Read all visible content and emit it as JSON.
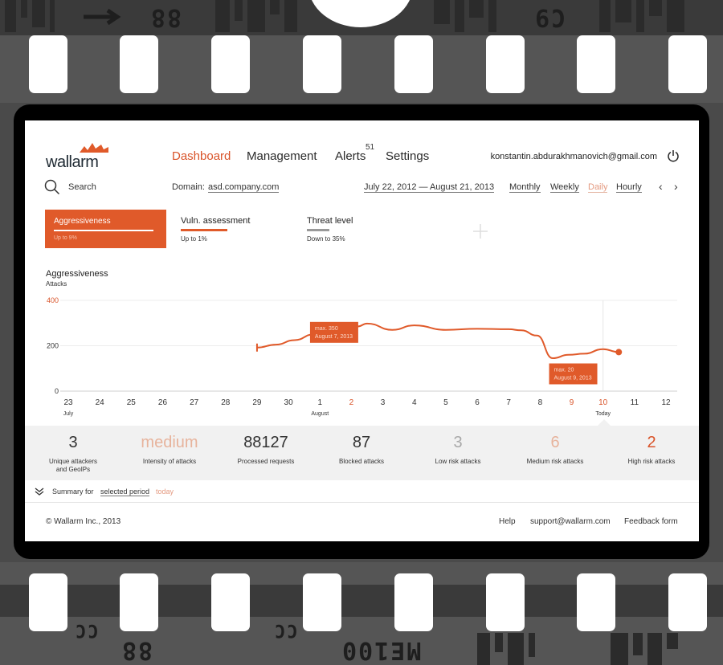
{
  "film": {
    "marks_top": [
      "88",
      "C9"
    ],
    "marks_bottom": [
      "CC",
      "88",
      "CC",
      "ME100"
    ]
  },
  "header": {
    "logo_text": "wallarm",
    "nav": [
      {
        "label": "Dashboard",
        "active": true
      },
      {
        "label": "Management",
        "active": false
      },
      {
        "label": "Alerts",
        "active": false
      },
      {
        "label": "Settings",
        "active": false
      }
    ],
    "alerts_badge": "51",
    "user_email": "konstantin.abdurakhmanovich@gmail.com"
  },
  "toolbar": {
    "search_label": "Search",
    "domain_label": "Domain:",
    "domain_value": "asd.company.com",
    "date_range": "July 22, 2012 — August 21, 2013",
    "periods": [
      {
        "label": "Monthly",
        "active": false
      },
      {
        "label": "Weekly",
        "active": false
      },
      {
        "label": "Daily",
        "active": true
      },
      {
        "label": "Hourly",
        "active": false
      }
    ],
    "prev_label": "‹",
    "next_label": "›"
  },
  "metric_tabs": [
    {
      "title": "Aggressiveness",
      "subtitle": "Up to 9%",
      "active": true
    },
    {
      "title": "Vuln. assessment",
      "subtitle": "Up to 1%",
      "active": false
    },
    {
      "title": "Threat level",
      "subtitle": "Down to 35%",
      "active": false
    }
  ],
  "chart_data": {
    "type": "line",
    "title": "Aggressiveness",
    "ylabel": "Attacks",
    "ylim": [
      0,
      400
    ],
    "yticks": [
      0,
      200,
      400
    ],
    "x_labels": [
      "23",
      "24",
      "25",
      "26",
      "27",
      "28",
      "29",
      "30",
      "1",
      "2",
      "3",
      "4",
      "5",
      "6",
      "7",
      "8",
      "9",
      "10",
      "11",
      "12"
    ],
    "x_label_colors": [
      "#333333",
      "#333333",
      "#333333",
      "#333333",
      "#333333",
      "#333333",
      "#333333",
      "#333333",
      "#333333",
      "#d9542a",
      "#333333",
      "#333333",
      "#333333",
      "#333333",
      "#333333",
      "#333333",
      "#d9542a",
      "#d9542a",
      "#333333",
      "#333333"
    ],
    "month_labels": [
      {
        "index": 0,
        "label": "July"
      },
      {
        "index": 8,
        "label": "August"
      },
      {
        "index": 17,
        "label": "Today"
      }
    ],
    "series": [
      {
        "x": [
          6,
          6.6,
          7.2,
          7.8,
          8.4,
          9.2,
          9.5,
          10.3,
          11,
          12,
          13,
          14,
          14.4,
          14.9,
          15.4,
          15.9,
          16.4,
          17,
          17.5
        ],
        "values": [
          192,
          205,
          225,
          250,
          270,
          285,
          298,
          270,
          290,
          270,
          275,
          273,
          268,
          245,
          145,
          160,
          165,
          185,
          172
        ]
      }
    ],
    "color": "#e05a2a",
    "annotations": [
      {
        "x": 8.4,
        "y": 298,
        "lines": [
          "max. 350",
          "August 7, 2013"
        ]
      },
      {
        "x": 16.0,
        "y": 115,
        "lines": [
          "max. 20",
          "August 9, 2013"
        ]
      }
    ],
    "today_index": 17
  },
  "stats": [
    {
      "value": "3",
      "label": "Unique attackers and GeoIPs",
      "style": "dark"
    },
    {
      "value": "medium",
      "label": "Intensity of attacks",
      "style": "orange-light"
    },
    {
      "value": "88127",
      "label": "Processed requests",
      "style": "dark"
    },
    {
      "value": "87",
      "label": "Blocked attacks",
      "style": "dark"
    },
    {
      "value": "3",
      "label": "Low risk attacks",
      "style": "light"
    },
    {
      "value": "6",
      "label": "Medium risk attacks",
      "style": "orange-light"
    },
    {
      "value": "2",
      "label": "High risk attacks",
      "style": "orange"
    }
  ],
  "summary": {
    "prefix": "Summary for",
    "period_link": "selected period",
    "today_link": "today"
  },
  "footer": {
    "copyright": "© Wallarm Inc., 2013",
    "links": [
      "Help",
      "support@wallarm.com",
      "Feedback form"
    ]
  },
  "colors": {
    "accent": "#e05a2a",
    "accent_light": "#e7b39c",
    "text": "#333333"
  }
}
